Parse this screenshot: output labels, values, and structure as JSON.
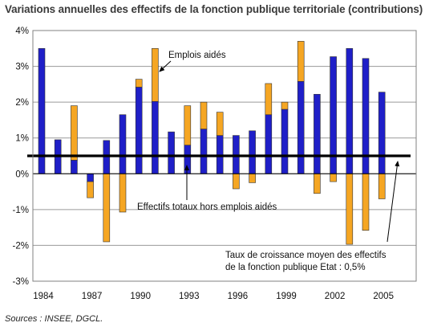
{
  "chart_data": {
    "type": "bar",
    "title": "Variations annuelles des effectifs de la fonction publique territoriale (contributions)",
    "years": [
      1984,
      1985,
      1986,
      1987,
      1988,
      1989,
      1990,
      1991,
      1992,
      1993,
      1994,
      1995,
      1996,
      1997,
      1998,
      1999,
      2000,
      2001,
      2002,
      2003,
      2004,
      2005
    ],
    "x_tick_labels": [
      "1984",
      "1987",
      "1990",
      "1993",
      "1996",
      "1999",
      "2002",
      "2005"
    ],
    "y_tick_labels": [
      "-3%",
      "-2%",
      "-1%",
      "0%",
      "1%",
      "2%",
      "3%",
      "4%"
    ],
    "ylim": [
      -3,
      4
    ],
    "grid": true,
    "series": [
      {
        "name": "Effectifs totaux hors emplois aidés",
        "color": "#1f1fc8",
        "values": [
          3.5,
          0.95,
          0.38,
          -0.22,
          0.93,
          1.65,
          2.42,
          2.02,
          1.17,
          0.8,
          1.25,
          1.07,
          1.07,
          1.2,
          1.65,
          1.8,
          2.58,
          2.22,
          3.27,
          3.5,
          3.22,
          2.28
        ]
      },
      {
        "name": "Emplois aidés",
        "color": "#f5a623",
        "values": [
          0,
          0,
          1.52,
          -0.45,
          -1.9,
          -1.07,
          0.22,
          1.48,
          0,
          1.1,
          0.75,
          0.65,
          -0.42,
          -0.25,
          0.87,
          0.2,
          1.12,
          -0.55,
          -0.22,
          -1.97,
          -1.58,
          -0.7
        ]
      }
    ],
    "reference_line": {
      "value": 0.5,
      "label": "Taux de croissance moyen des effectifs de la fonction publique Etat : 0,5%"
    },
    "annotations": {
      "emplois_aides": "Emplois aidés",
      "effectifs_totaux": "Effectifs totaux hors emplois aidés",
      "reference_line1": "Taux de croissance moyen des effectifs",
      "reference_line2": "de la  fonction publique Etat : 0,5%"
    }
  },
  "source": "Sources : INSEE, DGCL."
}
